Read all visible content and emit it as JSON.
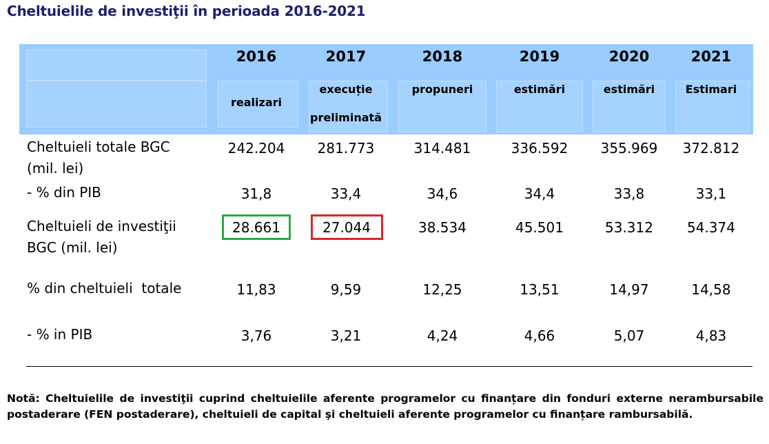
{
  "title": "Cheltuielile de investiţii în perioada 2016-2021",
  "table": {
    "columns": [
      {
        "year": "2016",
        "sub": "realizari"
      },
      {
        "year": "2017",
        "sub_line1": "execuție",
        "sub_line2": "preliminată"
      },
      {
        "year": "2018",
        "sub": "propuneri"
      },
      {
        "year": "2019",
        "sub": "estimări"
      },
      {
        "year": "2020",
        "sub": "estimări"
      },
      {
        "year": "2021",
        "sub": "Estimari"
      }
    ],
    "rows": [
      {
        "label_line1": "Cheltuieli totale BGC",
        "label_line2": "(mil. lei)",
        "values": [
          "242.204",
          "281.773",
          "314.481",
          "336.592",
          "355.969",
          "372.812"
        ]
      },
      {
        "label_line1": "- % din PIB",
        "values": [
          "31,8",
          "33,4",
          "34,6",
          "34,4",
          "33,8",
          "33,1"
        ]
      },
      {
        "label_line1": "Cheltuieli de investiţii",
        "label_line2": "BGC (mil. lei)",
        "values": [
          "28.661",
          "27.044",
          "38.534",
          "45.501",
          "53.312",
          "54.374"
        ]
      },
      {
        "label_line1": "% din cheltuieli  totale",
        "values": [
          "11,83",
          "9,59",
          "12,25",
          "13,51",
          "14,97",
          "14,58"
        ]
      },
      {
        "label_line1": "- % in PIB",
        "values": [
          "3,76",
          "3,21",
          "4,24",
          "4,66",
          "5,07",
          "4,83"
        ]
      }
    ]
  },
  "highlights": {
    "green_color": "#2ea84a",
    "red_color": "#d9262c"
  },
  "note": "Notă: Cheltuielile de investiţii cuprind cheltuielile aferente programelor cu finanțare din fonduri externe nerambursabile postaderare (FEN postaderare), cheltuieli de capital şi cheltuieli aferente programelor cu finanțare rambursabilă."
}
